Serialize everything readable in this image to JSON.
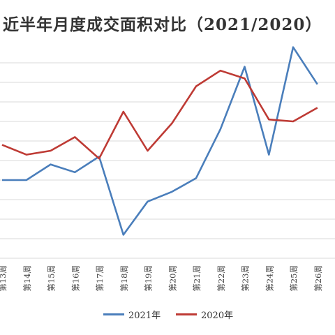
{
  "chart_data": {
    "type": "line",
    "title": "近半年月度成交面积对比（2021/2020）",
    "categories": [
      "第13周",
      "第14周",
      "第15周",
      "第16周",
      "第17周",
      "第18周",
      "第19周",
      "第20周",
      "第21周",
      "第22周",
      "第23周",
      "第24周",
      "第25周",
      "第26周"
    ],
    "series": [
      {
        "name": "2021年",
        "color": "#4a7ebb",
        "values": [
          60,
          60,
          52,
          56,
          48,
          88,
          71,
          66,
          59,
          34,
          2,
          47,
          -8,
          11
        ]
      },
      {
        "name": "2020年",
        "color": "#be3a34",
        "values": [
          42,
          47,
          45,
          38,
          49,
          25,
          45,
          31,
          12,
          4,
          8,
          29,
          30,
          23
        ]
      }
    ],
    "ylim": [
      0,
      100
    ],
    "grid": true,
    "legend_position": "bottom"
  }
}
